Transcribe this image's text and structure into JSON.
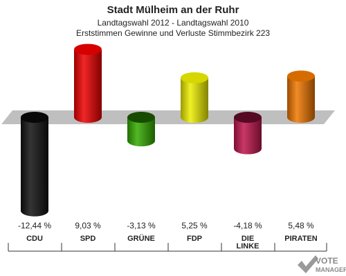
{
  "header": {
    "title": "Stadt Mülheim an der Ruhr",
    "subtitle1": "Landtagswahl 2012 - Landtagswahl 2010",
    "subtitle2": "Erststimmen Gewinne und Verluste Stimmbezirk 223"
  },
  "chart_data": {
    "type": "bar",
    "title": "Stadt Mülheim an der Ruhr",
    "subtitle": "Landtagswahl 2012 - Landtagswahl 2010 / Erststimmen Gewinne und Verluste Stimmbezirk 223",
    "xlabel": "",
    "ylabel": "",
    "ylim": [
      -12.44,
      9.03
    ],
    "grid": false,
    "legend": "none",
    "categories": [
      "CDU",
      "SPD",
      "GRÜNE",
      "FDP",
      "DIE LINKE",
      "PIRATEN"
    ],
    "category_lines": [
      [
        "CDU"
      ],
      [
        "SPD"
      ],
      [
        "GRÜNE"
      ],
      [
        "FDP"
      ],
      [
        "DIE",
        "LINKE"
      ],
      [
        "PIRATEN"
      ]
    ],
    "values": [
      -12.44,
      9.03,
      -3.13,
      5.25,
      -4.18,
      5.48
    ],
    "value_labels": [
      "-12,44 %",
      "9,03 %",
      "-3,13 %",
      "5,25 %",
      "-4,18 %",
      "5,48 %"
    ],
    "colors": [
      "#111111",
      "#ee0000",
      "#33aa00",
      "#eeee00",
      "#c0154d",
      "#ee7700"
    ]
  },
  "watermark": {
    "line1": "VOTE",
    "line2": "MANAGER"
  }
}
